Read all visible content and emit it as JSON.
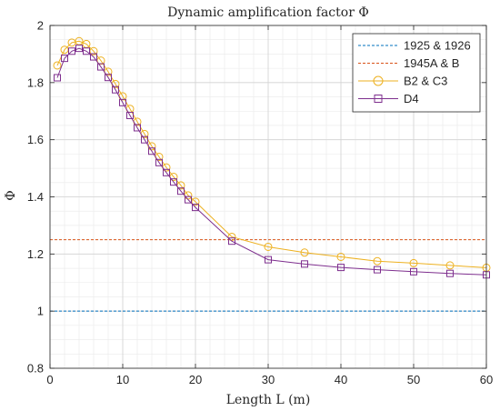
{
  "chart_data": {
    "type": "line",
    "title": "Dynamic amplification factor Φ",
    "xlabel": "Length L (m)",
    "ylabel": "Φ",
    "xlim": [
      0,
      60
    ],
    "ylim": [
      0.8,
      2.0
    ],
    "xticks": [
      0,
      10,
      20,
      30,
      40,
      50,
      60
    ],
    "yticks": [
      0.8,
      1.0,
      1.2,
      1.4,
      1.6,
      1.8,
      2.0
    ],
    "xticklabels": [
      "0",
      "10",
      "20",
      "30",
      "40",
      "50",
      "60"
    ],
    "yticklabels": [
      "0.8",
      "1",
      "1.2",
      "1.4",
      "1.6",
      "1.8",
      "2"
    ],
    "grid": "major and minor",
    "legend_position": "top-right",
    "series": [
      {
        "name": "1925 & 1926",
        "style": "dashed",
        "marker": "none",
        "color": "#0072BD",
        "x": [
          0,
          60
        ],
        "y": [
          1.0,
          1.0
        ]
      },
      {
        "name": "1945A & B",
        "style": "dashed",
        "marker": "none",
        "color": "#D95319",
        "x": [
          0,
          60
        ],
        "y": [
          1.25,
          1.25
        ]
      },
      {
        "name": "B2 & C3",
        "style": "solid",
        "marker": "circle",
        "color": "#EDB120",
        "x": [
          1,
          2,
          3,
          4,
          5,
          6,
          7,
          8,
          9,
          10,
          11,
          12,
          13,
          14,
          15,
          16,
          17,
          18,
          19,
          20,
          25,
          30,
          35,
          40,
          45,
          50,
          55,
          60
        ],
        "y": [
          1.86,
          1.915,
          1.94,
          1.945,
          1.935,
          1.91,
          1.877,
          1.838,
          1.795,
          1.752,
          1.708,
          1.663,
          1.62,
          1.577,
          1.54,
          1.503,
          1.47,
          1.44,
          1.405,
          1.383,
          1.26,
          1.225,
          1.205,
          1.19,
          1.175,
          1.168,
          1.16,
          1.152
        ]
      },
      {
        "name": "D4",
        "style": "solid",
        "marker": "square",
        "color": "#7E2F8E",
        "x": [
          1,
          2,
          3,
          4,
          5,
          6,
          7,
          8,
          9,
          10,
          11,
          12,
          13,
          14,
          15,
          16,
          17,
          18,
          19,
          20,
          25,
          30,
          35,
          40,
          45,
          50,
          55,
          60
        ],
        "y": [
          1.817,
          1.885,
          1.91,
          1.92,
          1.91,
          1.89,
          1.855,
          1.818,
          1.775,
          1.73,
          1.685,
          1.642,
          1.6,
          1.56,
          1.52,
          1.485,
          1.452,
          1.42,
          1.39,
          1.363,
          1.245,
          1.18,
          1.165,
          1.153,
          1.145,
          1.138,
          1.132,
          1.127
        ]
      }
    ]
  }
}
